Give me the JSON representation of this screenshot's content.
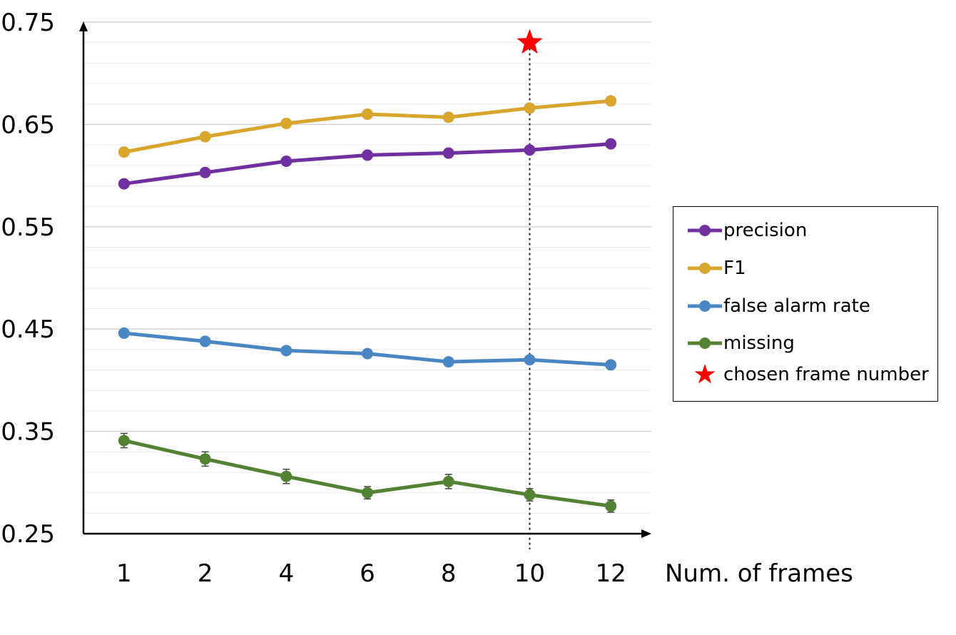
{
  "chart_data": {
    "type": "line",
    "title": "",
    "xlabel": "Num. of frames",
    "ylabel": "",
    "categories": [
      "1",
      "2",
      "4",
      "6",
      "8",
      "10",
      "12"
    ],
    "y_ticks": [
      "0.25",
      "0.35",
      "0.45",
      "0.55",
      "0.65",
      "0.75"
    ],
    "ylim": [
      0.25,
      0.75
    ],
    "grid": true,
    "legend_position": "right",
    "series": [
      {
        "name": "precision",
        "color": "#7030a0",
        "values": [
          0.592,
          0.603,
          0.614,
          0.62,
          0.622,
          0.625,
          0.631
        ],
        "error": [
          0.002,
          0.002,
          0.002,
          0.002,
          0.002,
          0.002,
          0.002
        ]
      },
      {
        "name": "F1",
        "color": "#d9a62d",
        "values": [
          0.623,
          0.638,
          0.651,
          0.66,
          0.657,
          0.666,
          0.673
        ],
        "error": [
          0.004,
          0.004,
          0.004,
          0.004,
          0.004,
          0.004,
          0.004
        ]
      },
      {
        "name": "false alarm rate",
        "color": "#4a86c3",
        "values": [
          0.446,
          0.438,
          0.429,
          0.426,
          0.418,
          0.42,
          0.415
        ],
        "error": [
          0.002,
          0.002,
          0.002,
          0.002,
          0.002,
          0.002,
          0.002
        ]
      },
      {
        "name": "missing",
        "color": "#548235",
        "values": [
          0.341,
          0.323,
          0.306,
          0.29,
          0.301,
          0.288,
          0.277
        ],
        "error": [
          0.007,
          0.007,
          0.007,
          0.006,
          0.007,
          0.006,
          0.006
        ]
      }
    ],
    "marker": {
      "name": "chosen frame number",
      "category": "10",
      "y": 0.73,
      "color": "#ff0000",
      "shape": "star",
      "guideline": "dotted"
    }
  }
}
